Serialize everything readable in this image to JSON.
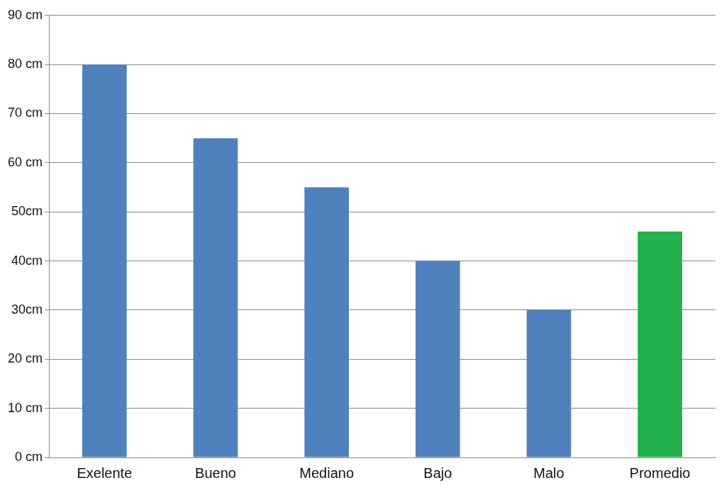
{
  "chart_data": {
    "type": "bar",
    "categories": [
      "Exelente",
      "Bueno",
      "Mediano",
      "Bajo",
      "Malo",
      "Promedio"
    ],
    "values": [
      80,
      65,
      55,
      40,
      30,
      46
    ],
    "colors": [
      "#4f81bd",
      "#4f81bd",
      "#4f81bd",
      "#4f81bd",
      "#4f81bd",
      "#22b14c"
    ],
    "ylim": [
      0,
      90
    ],
    "yticks": [
      {
        "value": 0,
        "label": "0 cm"
      },
      {
        "value": 10,
        "label": "10 cm"
      },
      {
        "value": 20,
        "label": "20 cm"
      },
      {
        "value": 30,
        "label": "30cm"
      },
      {
        "value": 40,
        "label": "40cm"
      },
      {
        "value": 50,
        "label": "50cm"
      },
      {
        "value": 60,
        "label": "60 cm"
      },
      {
        "value": 70,
        "label": "70 cm"
      },
      {
        "value": 80,
        "label": "80 cm"
      },
      {
        "value": 90,
        "label": "90 cm"
      }
    ],
    "grid": "y",
    "legend": false
  }
}
